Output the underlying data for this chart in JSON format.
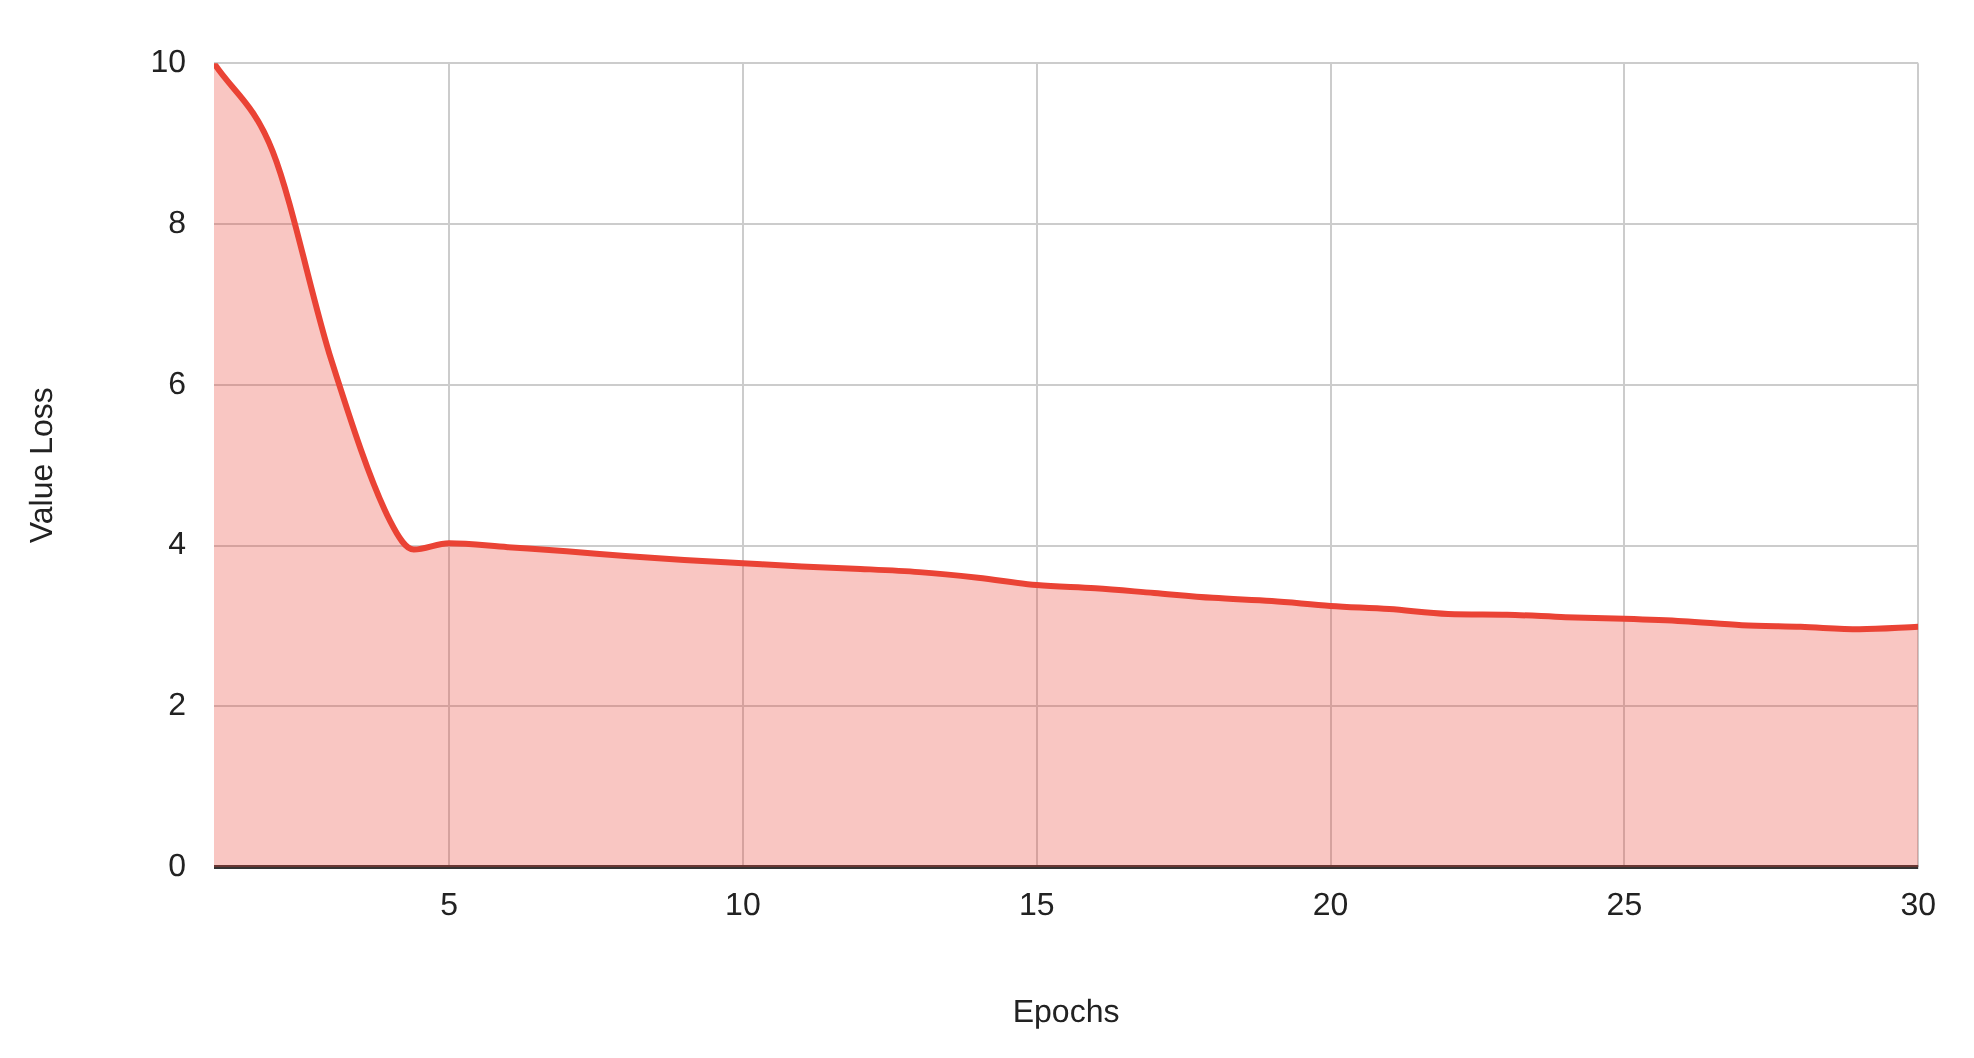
{
  "chart_data": {
    "type": "area",
    "xlabel": "Epochs",
    "ylabel": "Value Loss",
    "x": [
      1,
      2,
      3,
      4,
      4.4,
      5,
      6,
      7,
      8,
      9,
      10,
      11,
      12,
      13,
      14,
      15,
      16,
      17,
      18,
      19,
      20,
      21,
      22,
      23,
      24,
      25,
      26,
      27,
      28,
      29,
      30
    ],
    "series": [
      {
        "color": "#ea4335",
        "values": [
          10,
          8.9,
          6.3,
          4.3,
          3.95,
          4.03,
          3.98,
          3.93,
          3.87,
          3.82,
          3.78,
          3.74,
          3.71,
          3.67,
          3.6,
          3.51,
          3.47,
          3.41,
          3.35,
          3.31,
          3.25,
          3.21,
          3.15,
          3.14,
          3.11,
          3.09,
          3.06,
          3.01,
          2.99,
          2.96,
          2.99
        ]
      }
    ],
    "xlim": [
      1,
      30
    ],
    "xticks": [
      5,
      10,
      15,
      20,
      25,
      30
    ],
    "ylim": [
      0,
      10
    ],
    "yticks": [
      0,
      2,
      4,
      6,
      8,
      10
    ],
    "grid": true,
    "legend": false
  }
}
